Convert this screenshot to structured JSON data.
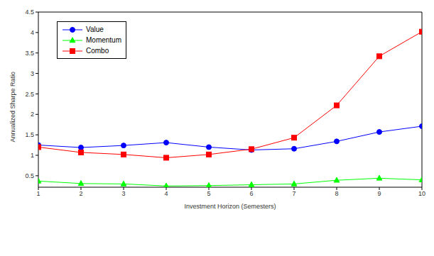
{
  "chart_data": {
    "type": "line",
    "x_label": "Investment Horizon (Semesters)",
    "y_label": "Annualized Sharpe Ratio",
    "x": [
      1,
      2,
      3,
      4,
      5,
      6,
      7,
      8,
      9,
      10
    ],
    "series": [
      {
        "name": "Value",
        "color": "#0000ff",
        "marker": "circle",
        "values": [
          1.25,
          1.19,
          1.24,
          1.31,
          1.2,
          1.13,
          1.16,
          1.34,
          1.57,
          1.71
        ]
      },
      {
        "name": "Momentum",
        "color": "#00ff00",
        "marker": "triangle",
        "values": [
          0.37,
          0.31,
          0.3,
          0.25,
          0.26,
          0.28,
          0.3,
          0.39,
          0.44,
          0.4
        ]
      },
      {
        "name": "Combo",
        "color": "#ff0000",
        "marker": "square",
        "values": [
          1.2,
          1.07,
          1.02,
          0.94,
          1.02,
          1.15,
          1.43,
          2.22,
          3.42,
          4.02
        ]
      }
    ],
    "xlim": [
      1,
      10
    ],
    "xticks": [
      1,
      2,
      3,
      4,
      5,
      6,
      7,
      8,
      9,
      10
    ],
    "ylim": [
      0.22,
      4.5
    ],
    "yticks": [
      0.5,
      1,
      1.5,
      2,
      2.5,
      3,
      3.5,
      4,
      4.5
    ],
    "legend": "upper left",
    "grid": false
  }
}
